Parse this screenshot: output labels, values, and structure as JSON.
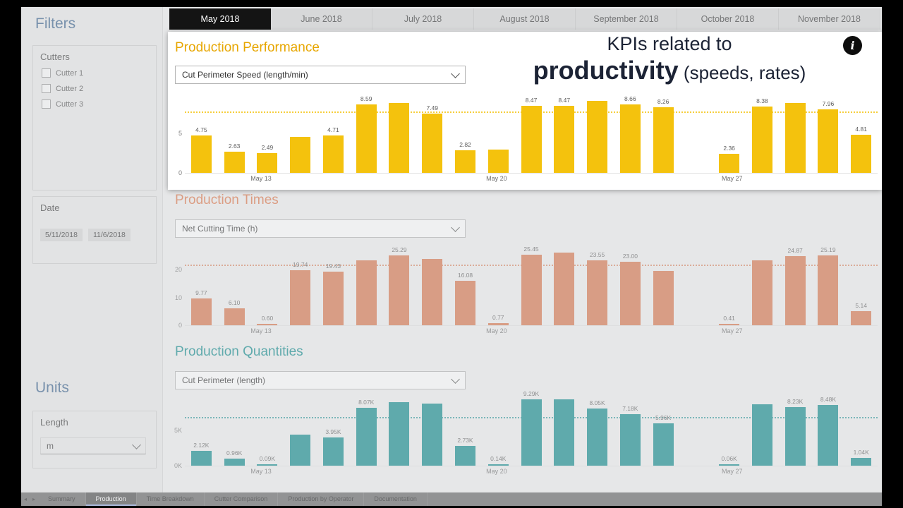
{
  "sidebar": {
    "filters_title": "Filters",
    "accent_color": "#39618C",
    "cutters": {
      "label": "Cutters",
      "items": [
        {
          "label": "Cutter 1",
          "checked": false
        },
        {
          "label": "Cutter 2",
          "checked": false
        },
        {
          "label": "Cutter 3",
          "checked": false
        }
      ]
    },
    "date": {
      "label": "Date",
      "start_value": "5/11/2018",
      "end_value": "11/6/2018"
    },
    "units_title": "Units",
    "length": {
      "label": "Length",
      "value": "m"
    }
  },
  "month_tabs": [
    {
      "label": "May 2018",
      "selected": true
    },
    {
      "label": "June 2018",
      "selected": false
    },
    {
      "label": "July 2018",
      "selected": false
    },
    {
      "label": "August 2018",
      "selected": false
    },
    {
      "label": "September 2018",
      "selected": false
    },
    {
      "label": "October 2018",
      "selected": false
    },
    {
      "label": "November 2018",
      "selected": false
    }
  ],
  "annotation": {
    "line1": "KPIs related to",
    "emphasis": "productivity",
    "suffix": "(speeds, rates)",
    "info_icon_glyph": "i",
    "text_color": "#1c2335"
  },
  "chart_data": [
    {
      "type": "bar",
      "title": "Production Performance",
      "dropdown_value": "Cut Perimeter Speed (length/min)",
      "bar_color": "#F4C20D",
      "title_color": "#E7A600",
      "ylim": [
        0,
        9.6
      ],
      "yticks": [
        {
          "label": "0",
          "v": 0
        },
        {
          "label": "5",
          "v": 5
        }
      ],
      "refline": 7.6,
      "x_tick_labels": [
        {
          "text": "May 13",
          "pos_pct": 11
        },
        {
          "text": "May 20",
          "pos_pct": 45
        },
        {
          "text": "May 27",
          "pos_pct": 79
        }
      ],
      "bars": [
        {
          "v": 4.75,
          "label": "4.75"
        },
        {
          "v": 2.63,
          "label": "2.63"
        },
        {
          "v": 2.49,
          "label": "2.49"
        },
        {
          "v": 4.55,
          "label": ""
        },
        {
          "v": 4.71,
          "label": "4.71"
        },
        {
          "v": 8.59,
          "label": "8.59"
        },
        {
          "v": 8.78,
          "label": ""
        },
        {
          "v": 7.49,
          "label": "7.49"
        },
        {
          "v": 2.82,
          "label": "2.82"
        },
        {
          "v": 2.95,
          "label": ""
        },
        {
          "v": 8.47,
          "label": "8.47"
        },
        {
          "v": 8.47,
          "label": "8.47"
        },
        {
          "v": 9.05,
          "label": ""
        },
        {
          "v": 8.66,
          "label": "8.66"
        },
        {
          "v": 8.26,
          "label": "8.26"
        },
        {
          "v": 0,
          "label": ""
        },
        {
          "v": 2.36,
          "label": "2.36"
        },
        {
          "v": 8.38,
          "label": "8.38"
        },
        {
          "v": 8.82,
          "label": ""
        },
        {
          "v": 7.96,
          "label": "7.96"
        },
        {
          "v": 4.81,
          "label": "4.81"
        }
      ]
    },
    {
      "type": "bar",
      "title": "Production Times",
      "dropdown_value": "Net Cutting Time (h)",
      "bar_color": "#D9764B",
      "title_color": "#DE7549",
      "ylim": [
        0,
        27.5
      ],
      "yticks": [
        {
          "label": "0",
          "v": 0
        },
        {
          "label": "10",
          "v": 10
        },
        {
          "label": "20",
          "v": 20
        }
      ],
      "refline": 21.5,
      "x_tick_labels": [
        {
          "text": "May 13",
          "pos_pct": 11
        },
        {
          "text": "May 20",
          "pos_pct": 45
        },
        {
          "text": "May 27",
          "pos_pct": 79
        }
      ],
      "bars": [
        {
          "v": 9.77,
          "label": "9.77"
        },
        {
          "v": 6.1,
          "label": "6.10"
        },
        {
          "v": 0.6,
          "label": "0.60"
        },
        {
          "v": 19.74,
          "label": "19.74"
        },
        {
          "v": 19.43,
          "label": "19.43"
        },
        {
          "v": 23.5,
          "label": ""
        },
        {
          "v": 25.29,
          "label": "25.29"
        },
        {
          "v": 23.9,
          "label": ""
        },
        {
          "v": 16.08,
          "label": "16.08"
        },
        {
          "v": 0.77,
          "label": "0.77"
        },
        {
          "v": 25.45,
          "label": "25.45"
        },
        {
          "v": 26.2,
          "label": ""
        },
        {
          "v": 23.55,
          "label": "23.55"
        },
        {
          "v": 23.0,
          "label": "23.00"
        },
        {
          "v": 19.5,
          "label": ""
        },
        {
          "v": 0,
          "label": ""
        },
        {
          "v": 0.41,
          "label": "0.41"
        },
        {
          "v": 23.3,
          "label": ""
        },
        {
          "v": 24.87,
          "label": "24.87"
        },
        {
          "v": 25.19,
          "label": "25.19"
        },
        {
          "v": 5.14,
          "label": "5.14"
        }
      ]
    },
    {
      "type": "bar",
      "title": "Production Quantities",
      "dropdown_value": "Cut Perimeter (length)",
      "bar_color": "#108A8C",
      "title_color": "#108A8C",
      "ylim": [
        0,
        9.9
      ],
      "yticks": [
        {
          "label": "0K",
          "v": 0
        },
        {
          "label": "5K",
          "v": 5
        }
      ],
      "refline": 6.6,
      "x_tick_labels": [
        {
          "text": "May 13",
          "pos_pct": 11
        },
        {
          "text": "May 20",
          "pos_pct": 45
        },
        {
          "text": "May 27",
          "pos_pct": 79
        }
      ],
      "bars": [
        {
          "v": 2.12,
          "label": "2.12K"
        },
        {
          "v": 0.96,
          "label": "0.96K"
        },
        {
          "v": 0.09,
          "label": "0.09K"
        },
        {
          "v": 4.4,
          "label": ""
        },
        {
          "v": 3.95,
          "label": "3.95K"
        },
        {
          "v": 8.07,
          "label": "8.07K"
        },
        {
          "v": 8.9,
          "label": ""
        },
        {
          "v": 8.75,
          "label": ""
        },
        {
          "v": 2.73,
          "label": "2.73K"
        },
        {
          "v": 0.14,
          "label": "0.14K"
        },
        {
          "v": 9.29,
          "label": "9.29K"
        },
        {
          "v": 9.3,
          "label": ""
        },
        {
          "v": 8.05,
          "label": "8.05K"
        },
        {
          "v": 7.18,
          "label": "7.18K"
        },
        {
          "v": 5.96,
          "label": "5.96K"
        },
        {
          "v": 0,
          "label": ""
        },
        {
          "v": 0.06,
          "label": "0.06K"
        },
        {
          "v": 8.6,
          "label": ""
        },
        {
          "v": 8.23,
          "label": "8.23K"
        },
        {
          "v": 8.48,
          "label": "8.48K"
        },
        {
          "v": 1.04,
          "label": "1.04K"
        }
      ]
    }
  ],
  "bottom_tabs": {
    "nav_left_icon": "◂",
    "nav_right_icon": "▸",
    "items": [
      {
        "label": "Summary",
        "selected": false
      },
      {
        "label": "Production",
        "selected": true
      },
      {
        "label": "Time Breakdown",
        "selected": false
      },
      {
        "label": "Cutter Comparison",
        "selected": false
      },
      {
        "label": "Production by Operator",
        "selected": false
      },
      {
        "label": "Documentation",
        "selected": false
      }
    ]
  }
}
